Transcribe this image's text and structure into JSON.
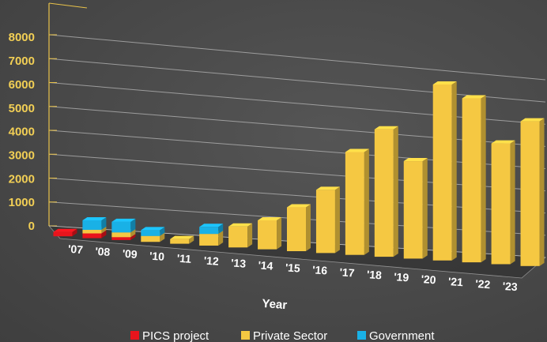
{
  "chart_data": {
    "type": "bar",
    "stacked": true,
    "three_d": true,
    "categories": [
      "'07",
      "'08",
      "'09",
      "'10",
      "'11",
      "'12",
      "'13",
      "'14",
      "'15",
      "'16",
      "'17",
      "'18",
      "'19",
      "'20",
      "'21",
      "'22",
      "'23"
    ],
    "series": [
      {
        "name": "PICS project",
        "color": "#e8141c",
        "values": [
          180,
          200,
          120,
          0,
          0,
          0,
          0,
          0,
          0,
          0,
          0,
          0,
          0,
          0,
          0,
          0,
          0
        ]
      },
      {
        "name": "Private Sector",
        "color": "#f5c842",
        "values": [
          0,
          150,
          200,
          250,
          200,
          500,
          900,
          1250,
          1900,
          2750,
          4500,
          5600,
          4300,
          7800,
          7300,
          5400,
          6500
        ]
      },
      {
        "name": "Government",
        "color": "#19b1e6",
        "values": [
          0,
          400,
          450,
          250,
          0,
          300,
          0,
          0,
          0,
          0,
          0,
          0,
          0,
          0,
          0,
          0,
          0
        ]
      }
    ],
    "xlabel": "Year",
    "ylabel": "",
    "ylim": [
      0,
      8000
    ],
    "yticks": [
      0,
      1000,
      2000,
      3000,
      4000,
      5000,
      6000,
      7000,
      8000
    ],
    "grid": true,
    "legend_position": "bottom"
  }
}
